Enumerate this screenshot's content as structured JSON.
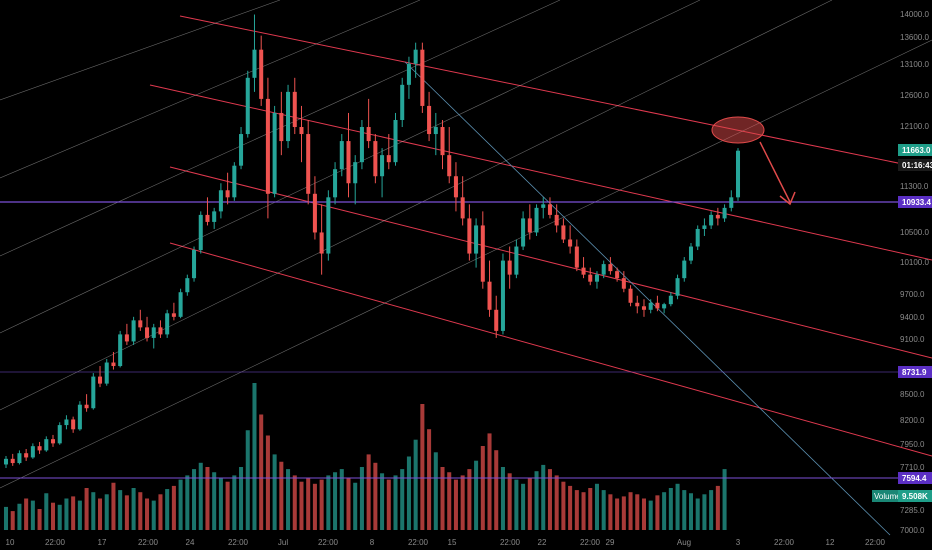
{
  "chart_data": {
    "type": "candlestick",
    "colors": {
      "background": "#000000",
      "up": "#26a69a",
      "down": "#ef5350",
      "channel": "#e0394f",
      "fan": "#bdbdbd",
      "diagonal": "#5b8fb0",
      "horizontal": "#7b4fd6",
      "badge_price": "#1f9e89",
      "badge_level": "#5b2fc4",
      "annotation": "#e04a4a"
    },
    "y_ticks": [
      "14000.0",
      "13600.0",
      "13100.0",
      "12600.0",
      "12100.0",
      "11300.0",
      "10500.0",
      "10100.0",
      "9700.0",
      "9400.0",
      "9100.0",
      "8500.0",
      "8200.0",
      "7950.0",
      "7710.0",
      "7285.0",
      "7000.0"
    ],
    "x_ticks": [
      "10",
      "22:00",
      "17",
      "22:00",
      "24",
      "22:00",
      "Jul",
      "22:00",
      "8",
      "22:00",
      "15",
      "22:00",
      "22",
      "22:00",
      "29",
      "Aug",
      "3",
      "22:00",
      "12",
      "22:00"
    ],
    "ohlc": [
      [
        7200,
        7320,
        7150,
        7280
      ],
      [
        7280,
        7350,
        7180,
        7220
      ],
      [
        7220,
        7400,
        7200,
        7360
      ],
      [
        7360,
        7420,
        7250,
        7300
      ],
      [
        7300,
        7500,
        7280,
        7460
      ],
      [
        7460,
        7520,
        7350,
        7400
      ],
      [
        7400,
        7600,
        7380,
        7560
      ],
      [
        7560,
        7620,
        7450,
        7500
      ],
      [
        7500,
        7800,
        7480,
        7760
      ],
      [
        7760,
        7900,
        7700,
        7840
      ],
      [
        7840,
        7880,
        7650,
        7700
      ],
      [
        7700,
        8100,
        7680,
        8050
      ],
      [
        8050,
        8200,
        7950,
        8000
      ],
      [
        8000,
        8500,
        7980,
        8450
      ],
      [
        8450,
        8600,
        8300,
        8350
      ],
      [
        8350,
        8700,
        8320,
        8650
      ],
      [
        8650,
        8800,
        8550,
        8600
      ],
      [
        8600,
        9100,
        8580,
        9050
      ],
      [
        9050,
        9200,
        8900,
        8950
      ],
      [
        8950,
        9300,
        8900,
        9250
      ],
      [
        9250,
        9400,
        9100,
        9150
      ],
      [
        9150,
        9300,
        8950,
        9000
      ],
      [
        9000,
        9200,
        8850,
        9150
      ],
      [
        9150,
        9250,
        9000,
        9050
      ],
      [
        9050,
        9400,
        9000,
        9350
      ],
      [
        9350,
        9500,
        9250,
        9300
      ],
      [
        9300,
        9700,
        9280,
        9650
      ],
      [
        9650,
        9900,
        9600,
        9850
      ],
      [
        9850,
        10300,
        9800,
        10250
      ],
      [
        10250,
        10800,
        10200,
        10750
      ],
      [
        10750,
        11000,
        10600,
        10650
      ],
      [
        10650,
        10850,
        10550,
        10800
      ],
      [
        10800,
        11200,
        10700,
        11100
      ],
      [
        11100,
        11350,
        10900,
        11000
      ],
      [
        11000,
        11500,
        10950,
        11450
      ],
      [
        11450,
        12000,
        11400,
        11900
      ],
      [
        11900,
        12800,
        11850,
        12700
      ],
      [
        12700,
        13600,
        12500,
        13100
      ],
      [
        13100,
        13300,
        12300,
        12400
      ],
      [
        12400,
        12700,
        10700,
        11050
      ],
      [
        11050,
        12300,
        11000,
        12200
      ],
      [
        12200,
        12500,
        11600,
        11800
      ],
      [
        11800,
        12600,
        11700,
        12500
      ],
      [
        12500,
        12700,
        11900,
        12000
      ],
      [
        12000,
        12300,
        11500,
        11900
      ],
      [
        11900,
        12100,
        10900,
        11050
      ],
      [
        11050,
        11300,
        10400,
        10500
      ],
      [
        10500,
        10900,
        9900,
        10200
      ],
      [
        10200,
        11100,
        10100,
        11000
      ],
      [
        11000,
        11500,
        10900,
        11400
      ],
      [
        11400,
        11900,
        11300,
        11800
      ],
      [
        11800,
        12200,
        11000,
        11200
      ],
      [
        11200,
        11600,
        10900,
        11500
      ],
      [
        11500,
        12100,
        11400,
        12000
      ],
      [
        12000,
        12400,
        11700,
        11800
      ],
      [
        11800,
        11900,
        11200,
        11300
      ],
      [
        11300,
        11700,
        11000,
        11600
      ],
      [
        11600,
        11900,
        11400,
        11500
      ],
      [
        11500,
        12200,
        11450,
        12100
      ],
      [
        12100,
        12700,
        12000,
        12600
      ],
      [
        12600,
        13000,
        12400,
        12900
      ],
      [
        12900,
        13200,
        12700,
        13100
      ],
      [
        13100,
        13200,
        12200,
        12300
      ],
      [
        12300,
        12500,
        11800,
        11900
      ],
      [
        11900,
        12200,
        11600,
        12000
      ],
      [
        12000,
        12100,
        11400,
        11600
      ],
      [
        11600,
        12000,
        11200,
        11300
      ],
      [
        11300,
        11500,
        10800,
        11000
      ],
      [
        11000,
        11300,
        10600,
        10700
      ],
      [
        10700,
        10900,
        10100,
        10200
      ],
      [
        10200,
        10700,
        10000,
        10600
      ],
      [
        10600,
        10800,
        9700,
        9800
      ],
      [
        9800,
        10100,
        9300,
        9400
      ],
      [
        9400,
        9600,
        9000,
        9100
      ],
      [
        9100,
        10200,
        9050,
        10100
      ],
      [
        10100,
        10300,
        9700,
        9900
      ],
      [
        9900,
        10400,
        9850,
        10300
      ],
      [
        10300,
        10800,
        10250,
        10700
      ],
      [
        10700,
        10900,
        10400,
        10500
      ],
      [
        10500,
        10900,
        10450,
        10850
      ],
      [
        10850,
        11000,
        10700,
        10900
      ],
      [
        10900,
        11000,
        10700,
        10750
      ],
      [
        10750,
        10900,
        10500,
        10600
      ],
      [
        10600,
        10700,
        10350,
        10400
      ],
      [
        10400,
        10600,
        10200,
        10300
      ],
      [
        10300,
        10400,
        9950,
        10000
      ],
      [
        10000,
        10150,
        9850,
        9900
      ],
      [
        9900,
        10000,
        9750,
        9800
      ],
      [
        9800,
        9950,
        9700,
        9900
      ],
      [
        9900,
        10100,
        9850,
        10050
      ],
      [
        10050,
        10150,
        9900,
        9950
      ],
      [
        9950,
        10000,
        9800,
        9850
      ],
      [
        9850,
        9950,
        9650,
        9700
      ],
      [
        9700,
        9750,
        9450,
        9500
      ],
      [
        9500,
        9600,
        9350,
        9450
      ],
      [
        9450,
        9550,
        9300,
        9400
      ],
      [
        9400,
        9550,
        9350,
        9500
      ],
      [
        9500,
        9600,
        9380,
        9420
      ],
      [
        9420,
        9500,
        9350,
        9480
      ],
      [
        9480,
        9650,
        9450,
        9600
      ],
      [
        9600,
        9900,
        9550,
        9850
      ],
      [
        9850,
        10150,
        9800,
        10100
      ],
      [
        10100,
        10350,
        10050,
        10300
      ],
      [
        10300,
        10600,
        10250,
        10550
      ],
      [
        10550,
        10700,
        10450,
        10600
      ],
      [
        10600,
        10800,
        10550,
        10750
      ],
      [
        10750,
        10850,
        10600,
        10700
      ],
      [
        10700,
        10900,
        10650,
        10850
      ],
      [
        10850,
        11100,
        10800,
        11000
      ],
      [
        11000,
        11700,
        10950,
        11663
      ]
    ],
    "volume": [
      22,
      18,
      25,
      30,
      28,
      20,
      35,
      26,
      24,
      30,
      32,
      28,
      40,
      36,
      30,
      34,
      45,
      38,
      33,
      40,
      36,
      30,
      28,
      34,
      39,
      42,
      48,
      52,
      58,
      64,
      60,
      55,
      50,
      46,
      52,
      60,
      95,
      140,
      110,
      90,
      72,
      65,
      58,
      52,
      46,
      50,
      44,
      48,
      52,
      55,
      58,
      50,
      45,
      60,
      72,
      64,
      54,
      48,
      52,
      58,
      70,
      86,
      120,
      96,
      74,
      60,
      55,
      48,
      52,
      58,
      66,
      80,
      92,
      76,
      60,
      54,
      48,
      44,
      50,
      56,
      62,
      58,
      52,
      46,
      42,
      38,
      36,
      40,
      44,
      38,
      34,
      30,
      32,
      36,
      34,
      30,
      28,
      33,
      36,
      40,
      44,
      38,
      35,
      30,
      34,
      38,
      42,
      58
    ],
    "levels": {
      "top_right": "11663.0",
      "countdown": "01:16:43",
      "mid": "10933.4",
      "lower1": "8731.9",
      "lower2": "7594.4"
    },
    "volume_badge": "9.508K",
    "volume_label": "Volume",
    "grid": false
  }
}
